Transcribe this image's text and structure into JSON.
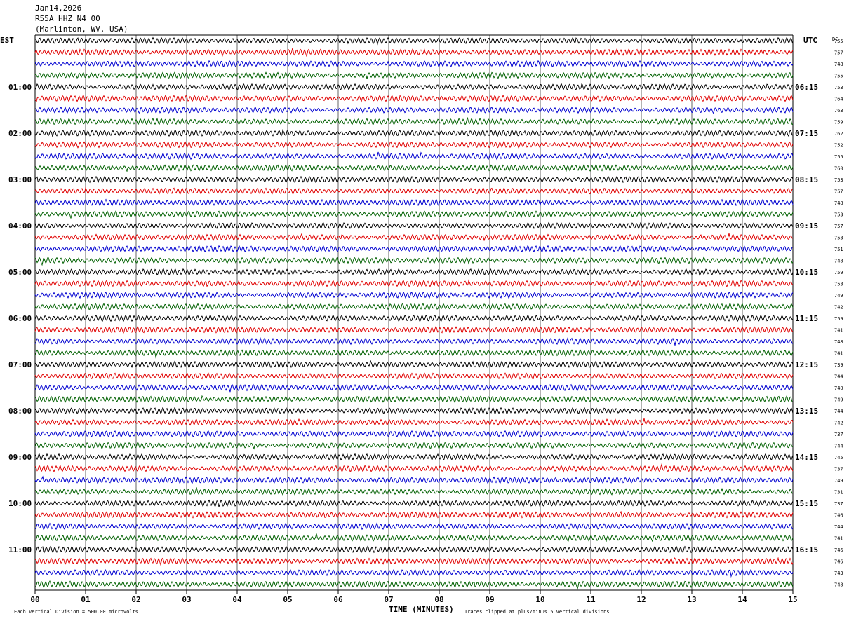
{
  "header": {
    "date": "Jan14,2026",
    "station": "R55A HHZ N4 00",
    "location": "(Marlinton, WV, USA)"
  },
  "left_label": "EST",
  "right_label": "UTC",
  "dc_label": "DC",
  "footer": {
    "scale_note": "Each Vertical Division =  500.00 microvolts",
    "xlabel": "TIME (MINUTES)",
    "clip_note": "Traces clipped at plus/minus 5 vertical divisions"
  },
  "colors": {
    "trace_cycle": [
      "#000000",
      "#e00000",
      "#0000d0",
      "#006000"
    ],
    "grid": "#000000",
    "background": "#ffffff"
  },
  "chart_data": {
    "type": "line",
    "title": "",
    "xlabel": "TIME (MINUTES)",
    "ylabel": "",
    "xlim": [
      0,
      15
    ],
    "x_ticks": [
      "00",
      "01",
      "02",
      "03",
      "04",
      "05",
      "06",
      "07",
      "08",
      "09",
      "10",
      "11",
      "12",
      "13",
      "14",
      "15"
    ],
    "trace_count": 48,
    "traces_per_hour": 4,
    "minutes_per_trace": 15,
    "hour_labels_est": [
      "01:00",
      "02:00",
      "03:00",
      "04:00",
      "05:00",
      "06:00",
      "07:00",
      "08:00",
      "09:00",
      "10:00",
      "11:00"
    ],
    "hour_labels_utc": [
      "06:15",
      "07:15",
      "08:15",
      "09:15",
      "10:15",
      "11:15",
      "12:15",
      "13:15",
      "14:15",
      "15:15",
      "16:15"
    ],
    "dc_offsets": [
      755,
      757,
      748,
      755,
      753,
      764,
      763,
      759,
      762,
      752,
      755,
      760,
      753,
      757,
      748,
      753,
      757,
      753,
      751,
      748,
      759,
      753,
      749,
      742,
      759,
      741,
      748,
      741,
      739,
      744,
      740,
      749,
      744,
      742,
      737,
      744,
      745,
      737,
      749,
      731,
      737,
      746,
      744,
      741,
      746,
      746,
      743,
      748
    ]
  }
}
